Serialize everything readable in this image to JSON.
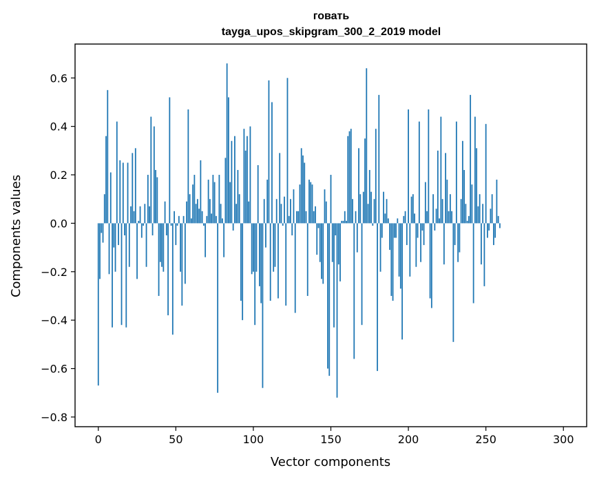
{
  "chart_data": {
    "type": "bar",
    "title_line1": "говать",
    "title_line2": "tayga_upos_skipgram_300_2_2019 model",
    "xlabel": "Vector components",
    "ylabel": "Components values",
    "xlim": [
      -15,
      315
    ],
    "ylim": [
      -0.84,
      0.74
    ],
    "xticks": [
      0,
      50,
      100,
      150,
      200,
      250,
      300
    ],
    "xtick_labels": [
      "0",
      "50",
      "100",
      "150",
      "200",
      "250",
      "300"
    ],
    "yticks": [
      -0.8,
      -0.6,
      -0.4,
      -0.2,
      0.0,
      0.2,
      0.4,
      0.6
    ],
    "ytick_labels": [
      "−0.8",
      "−0.6",
      "−0.4",
      "−0.2",
      "0.0",
      "0.2",
      "0.4",
      "0.6"
    ],
    "bar_color": "#1f77b4",
    "values": [
      -0.67,
      -0.23,
      -0.04,
      -0.08,
      0.12,
      0.36,
      0.55,
      -0.21,
      0.21,
      -0.43,
      -0.1,
      -0.2,
      0.42,
      -0.09,
      0.26,
      -0.42,
      0.25,
      -0.05,
      -0.43,
      0.25,
      -0.18,
      0.07,
      0.29,
      0.05,
      0.31,
      -0.23,
      0.01,
      0.07,
      -0.06,
      -0.01,
      0.08,
      -0.18,
      0.2,
      0.07,
      0.44,
      -0.05,
      0.4,
      0.22,
      0.19,
      -0.3,
      -0.16,
      -0.18,
      -0.2,
      0.09,
      -0.05,
      -0.38,
      0.52,
      -0.01,
      -0.46,
      0.05,
      -0.09,
      -0.01,
      0.03,
      -0.2,
      -0.34,
      0.03,
      -0.25,
      0.09,
      0.47,
      0.12,
      0.02,
      0.16,
      0.2,
      0.08,
      0.1,
      0.06,
      0.26,
      0.05,
      -0.01,
      -0.14,
      0.03,
      0.18,
      0.1,
      0.04,
      0.2,
      0.17,
      0.03,
      -0.7,
      0.2,
      0.08,
      0.02,
      -0.14,
      0.27,
      0.66,
      0.52,
      0.17,
      0.34,
      -0.03,
      0.36,
      0.08,
      0.22,
      0.12,
      -0.32,
      -0.4,
      0.39,
      0.3,
      0.36,
      0.09,
      0.4,
      -0.21,
      -0.2,
      -0.42,
      -0.2,
      0.24,
      -0.26,
      -0.33,
      -0.68,
      0.1,
      -0.1,
      0.18,
      0.59,
      -0.32,
      0.5,
      -0.2,
      -0.18,
      0.1,
      -0.31,
      0.29,
      0.08,
      -0.01,
      0.11,
      -0.34,
      0.6,
      0.03,
      0.1,
      -0.05,
      0.14,
      -0.37,
      0.05,
      0.05,
      0.16,
      0.31,
      0.28,
      0.25,
      0.05,
      -0.3,
      0.18,
      0.17,
      0.16,
      0.05,
      0.07,
      -0.13,
      -0.02,
      -0.16,
      -0.23,
      -0.25,
      0.14,
      0.09,
      -0.6,
      -0.63,
      0.2,
      -0.16,
      -0.43,
      -0.05,
      -0.72,
      -0.17,
      -0.24,
      0.01,
      0.01,
      0.05,
      0.01,
      0.36,
      0.38,
      0.39,
      0.1,
      -0.56,
      0.05,
      -0.12,
      0.31,
      0.12,
      -0.42,
      0.13,
      0.35,
      0.64,
      0.08,
      0.22,
      0.13,
      -0.01,
      0.1,
      0.39,
      -0.61,
      0.53,
      -0.2,
      -0.06,
      0.13,
      0.04,
      0.1,
      0.02,
      -0.11,
      -0.3,
      -0.32,
      -0.06,
      -0.06,
      0.02,
      -0.22,
      -0.27,
      -0.48,
      0.03,
      0.05,
      -0.09,
      0.47,
      -0.22,
      0.11,
      0.12,
      0.04,
      -0.18,
      -0.06,
      0.42,
      -0.16,
      -0.03,
      -0.09,
      0.17,
      0.05,
      0.47,
      -0.31,
      -0.35,
      0.12,
      -0.03,
      0.06,
      0.3,
      0.02,
      0.44,
      0.1,
      -0.17,
      0.29,
      0.18,
      0.05,
      0.12,
      0.05,
      -0.49,
      -0.09,
      0.42,
      -0.16,
      -0.12,
      0.1,
      0.34,
      0.22,
      0.08,
      0.01,
      0.03,
      0.53,
      0.16,
      -0.33,
      0.44,
      0.31,
      0.07,
      0.12,
      -0.17,
      0.08,
      -0.26,
      0.41,
      -0.06,
      -0.03,
      0.06,
      0.12,
      -0.09,
      -0.06,
      0.18,
      0.03,
      -0.02
    ]
  }
}
